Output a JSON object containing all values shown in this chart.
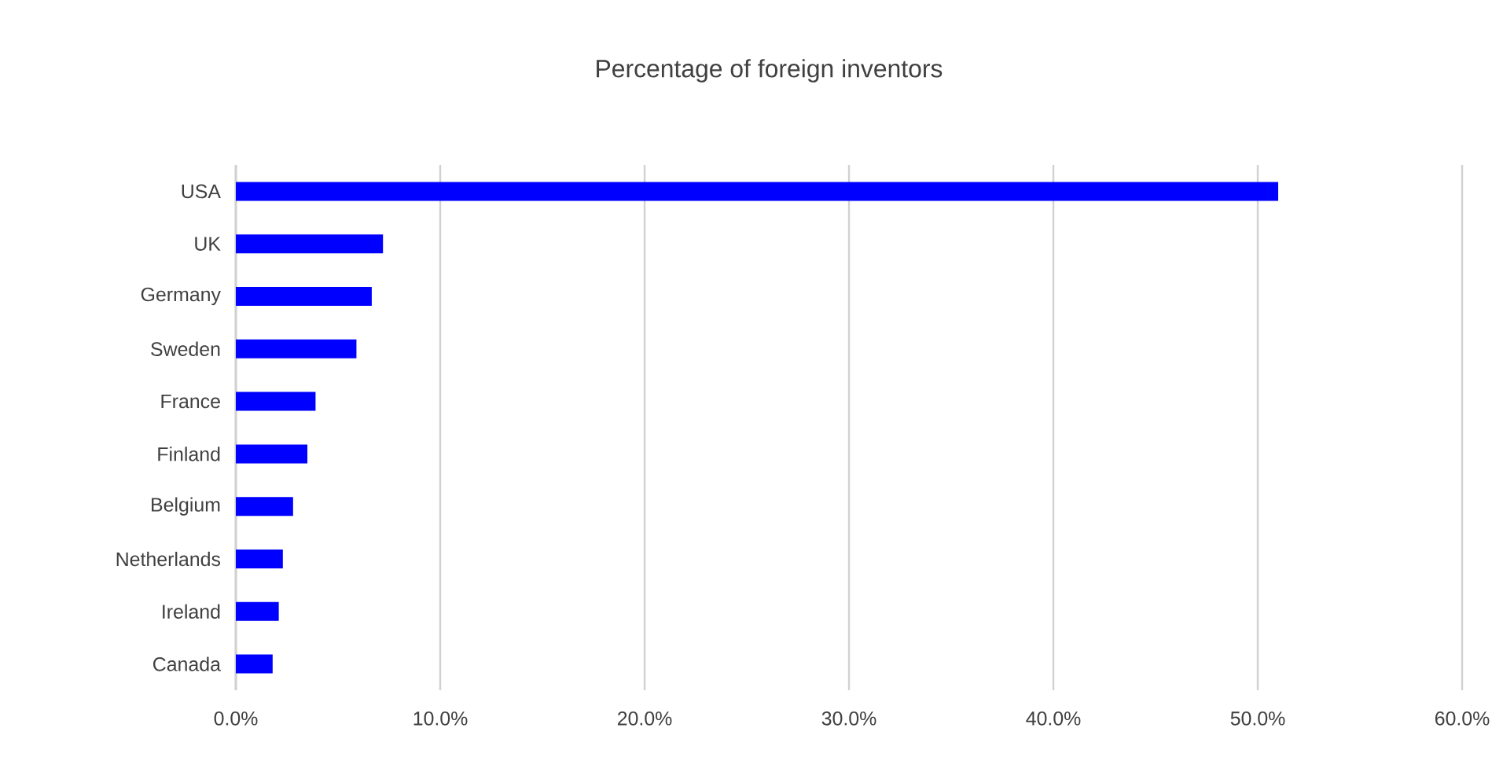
{
  "chart_data": {
    "type": "bar",
    "orientation": "horizontal",
    "title": "Percentage of foreign inventors",
    "categories": [
      "USA",
      "UK",
      "Germany",
      "Sweden",
      "France",
      "Finland",
      "Belgium",
      "Netherlands",
      "Ireland",
      "Canada"
    ],
    "values": [
      51.0,
      7.2,
      6.65,
      5.9,
      3.9,
      3.5,
      2.8,
      2.3,
      2.1,
      1.8
    ],
    "color": "#0000ff",
    "xlim": [
      0,
      60
    ],
    "xticks": [
      {
        "value": 0,
        "label": "0.0%"
      },
      {
        "value": 10,
        "label": "10.0%"
      },
      {
        "value": 20,
        "label": "20.0%"
      },
      {
        "value": 30,
        "label": "30.0%"
      },
      {
        "value": 40,
        "label": "40.0%"
      },
      {
        "value": 50,
        "label": "50.0%"
      },
      {
        "value": 60,
        "label": "60.0%"
      }
    ],
    "grid": "x"
  }
}
